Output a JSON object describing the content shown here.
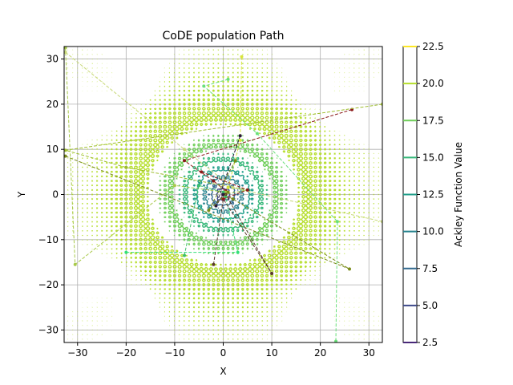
{
  "chart_data": {
    "type": "line",
    "title": "CoDE population Path",
    "xlabel": "X",
    "ylabel": "Y",
    "xlim": [
      -32.768,
      32.768
    ],
    "ylim": [
      -32.768,
      32.768
    ],
    "x_ticks": [
      -30,
      -20,
      -10,
      0,
      10,
      20,
      30
    ],
    "y_ticks": [
      -30,
      -20,
      -10,
      0,
      10,
      20,
      30
    ],
    "grid": true,
    "contour": {
      "function": "Ackley",
      "levels": [
        2.5,
        5.0,
        7.5,
        10.0,
        12.5,
        15.0,
        17.5,
        20.0,
        22.5
      ],
      "colors": [
        "#440154",
        "#482878",
        "#3e4989",
        "#31688e",
        "#26828e",
        "#1f9e89",
        "#35b779",
        "#6ece58",
        "#b5de2b",
        "#fde725"
      ]
    },
    "colorbar": {
      "label": "Ackley Function Value",
      "ticks": [
        2.5,
        5.0,
        7.5,
        10.0,
        12.5,
        15.0,
        17.5,
        20.0,
        22.5
      ],
      "tick_labels": [
        "2.5",
        "5.0",
        "7.5",
        "10.0",
        "12.5",
        "15.0",
        "17.5",
        "20.0",
        "22.5"
      ]
    },
    "series": [
      {
        "color": "#8b1a1a",
        "points": [
          [
            26.5,
            18.8
          ],
          [
            -8.0,
            7.5
          ],
          [
            -2.0,
            3.0
          ],
          [
            0.5,
            0.8
          ],
          [
            0.0,
            0.0
          ]
        ]
      },
      {
        "color": "#7a8c1a",
        "points": [
          [
            -32.5,
            8.5
          ],
          [
            26.0,
            -16.5
          ],
          [
            2.0,
            -1.0
          ],
          [
            0.0,
            0.0
          ]
        ]
      },
      {
        "color": "#9dbd2d",
        "points": [
          [
            32.8,
            20.0
          ],
          [
            -32.5,
            9.8
          ],
          [
            -20.0,
            6.0
          ],
          [
            5.0,
            1.0
          ],
          [
            0.0,
            0.0
          ]
        ]
      },
      {
        "color": "#a8c94a",
        "points": [
          [
            -32.5,
            32.5
          ],
          [
            -30.5,
            -15.5
          ],
          [
            -10.0,
            2.0
          ],
          [
            0.5,
            0.5
          ]
        ]
      },
      {
        "color": "#c8d87a",
        "points": [
          [
            -32.5,
            31.5
          ],
          [
            -8.0,
            10.0
          ],
          [
            2.0,
            1.5
          ],
          [
            32.8,
            -6.0
          ]
        ]
      },
      {
        "color": "#34e07a",
        "points": [
          [
            -20.0,
            -12.8
          ],
          [
            3.0,
            -12.8
          ],
          [
            0.5,
            -0.5
          ]
        ]
      },
      {
        "color": "#6ae07a",
        "points": [
          [
            1.0,
            25.5
          ],
          [
            -4.0,
            24.0
          ],
          [
            7.0,
            13.5
          ],
          [
            23.5,
            -6.0
          ],
          [
            23.2,
            -32.5
          ]
        ]
      },
      {
        "color": "#3ec06a",
        "points": [
          [
            -8.0,
            -13.5
          ],
          [
            -5.0,
            2.0
          ],
          [
            0.0,
            0.5
          ]
        ]
      },
      {
        "color": "#d8e43a",
        "points": [
          [
            3.8,
            30.5
          ],
          [
            3.5,
            12.0
          ],
          [
            1.0,
            1.5
          ]
        ]
      },
      {
        "color": "#5a3a2a",
        "points": [
          [
            -2.0,
            -15.5
          ],
          [
            0.0,
            -1.0
          ],
          [
            10.0,
            -17.5
          ],
          [
            0.5,
            0.0
          ]
        ]
      },
      {
        "color": "#2a1a3a",
        "points": [
          [
            3.5,
            13.0
          ],
          [
            -1.5,
            -2.5
          ],
          [
            0.0,
            0.0
          ]
        ]
      },
      {
        "color": "#8b1a1a",
        "points": [
          [
            -4.5,
            5.0
          ],
          [
            5.0,
            1.0
          ],
          [
            0.0,
            -1.0
          ]
        ]
      },
      {
        "color": "#7a8c1a",
        "points": [
          [
            2.5,
            7.5
          ],
          [
            -3.0,
            -3.5
          ],
          [
            1.0,
            0.5
          ]
        ]
      }
    ]
  }
}
